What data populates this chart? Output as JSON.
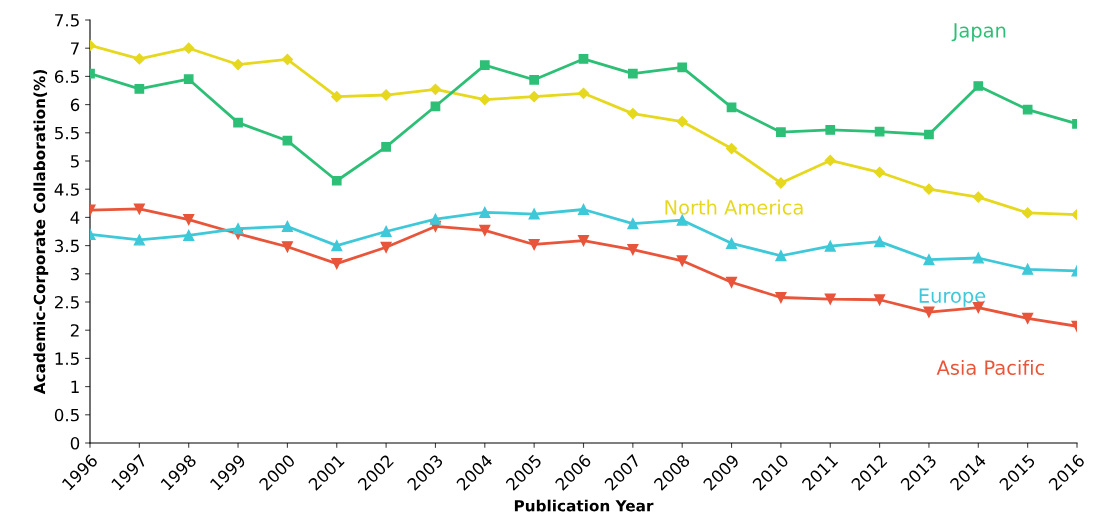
{
  "chart_data": {
    "type": "line",
    "xlabel": "Publication Year",
    "ylabel": "Academic-Corporate Collaboration(%)",
    "x": [
      1996,
      1997,
      1998,
      1999,
      2000,
      2001,
      2002,
      2003,
      2004,
      2005,
      2006,
      2007,
      2008,
      2009,
      2010,
      2011,
      2012,
      2013,
      2014,
      2015,
      2016
    ],
    "xlim": [
      1996,
      2016
    ],
    "xticks": [
      1996,
      1997,
      1998,
      1999,
      2000,
      2001,
      2002,
      2003,
      2004,
      2005,
      2006,
      2007,
      2008,
      2009,
      2010,
      2011,
      2012,
      2013,
      2014,
      2015,
      2016
    ],
    "ylim": [
      0,
      7.5
    ],
    "yticks": [
      0,
      0.5,
      1,
      1.5,
      2,
      2.5,
      3,
      3.5,
      4,
      4.5,
      5,
      5.5,
      6,
      6.5,
      7,
      7.5
    ],
    "grid": false,
    "legend": false,
    "line_style": "solid",
    "series": [
      {
        "name": "Japan",
        "color": "#2dbf76",
        "marker": "square",
        "values": [
          6.55,
          6.28,
          6.45,
          5.68,
          5.36,
          4.65,
          5.25,
          5.97,
          6.7,
          6.44,
          6.81,
          6.55,
          6.66,
          5.95,
          5.51,
          5.55,
          5.52,
          5.47,
          6.33,
          5.91,
          5.66
        ]
      },
      {
        "name": "North America",
        "color": "#e6d81e",
        "marker": "diamond",
        "values": [
          7.05,
          6.81,
          7.0,
          6.71,
          6.8,
          6.14,
          6.17,
          6.27,
          6.09,
          6.14,
          6.2,
          5.84,
          5.7,
          5.22,
          4.61,
          5.01,
          4.8,
          4.5,
          4.36,
          4.08,
          4.05
        ]
      },
      {
        "name": "Europe",
        "color": "#3ec8d8",
        "marker": "triangle",
        "values": [
          3.7,
          3.6,
          3.68,
          3.8,
          3.84,
          3.5,
          3.75,
          3.97,
          4.09,
          4.06,
          4.14,
          3.89,
          3.95,
          3.54,
          3.32,
          3.49,
          3.57,
          3.25,
          3.28,
          3.08,
          3.05
        ]
      },
      {
        "name": "Asia Pacific",
        "color": "#e8553a",
        "marker": "triangle_down",
        "values": [
          4.13,
          4.15,
          3.96,
          3.71,
          3.48,
          3.18,
          3.47,
          3.84,
          3.77,
          3.52,
          3.59,
          3.43,
          3.23,
          2.85,
          2.58,
          2.55,
          2.54,
          2.32,
          2.4,
          2.21,
          2.07
        ]
      }
    ]
  }
}
